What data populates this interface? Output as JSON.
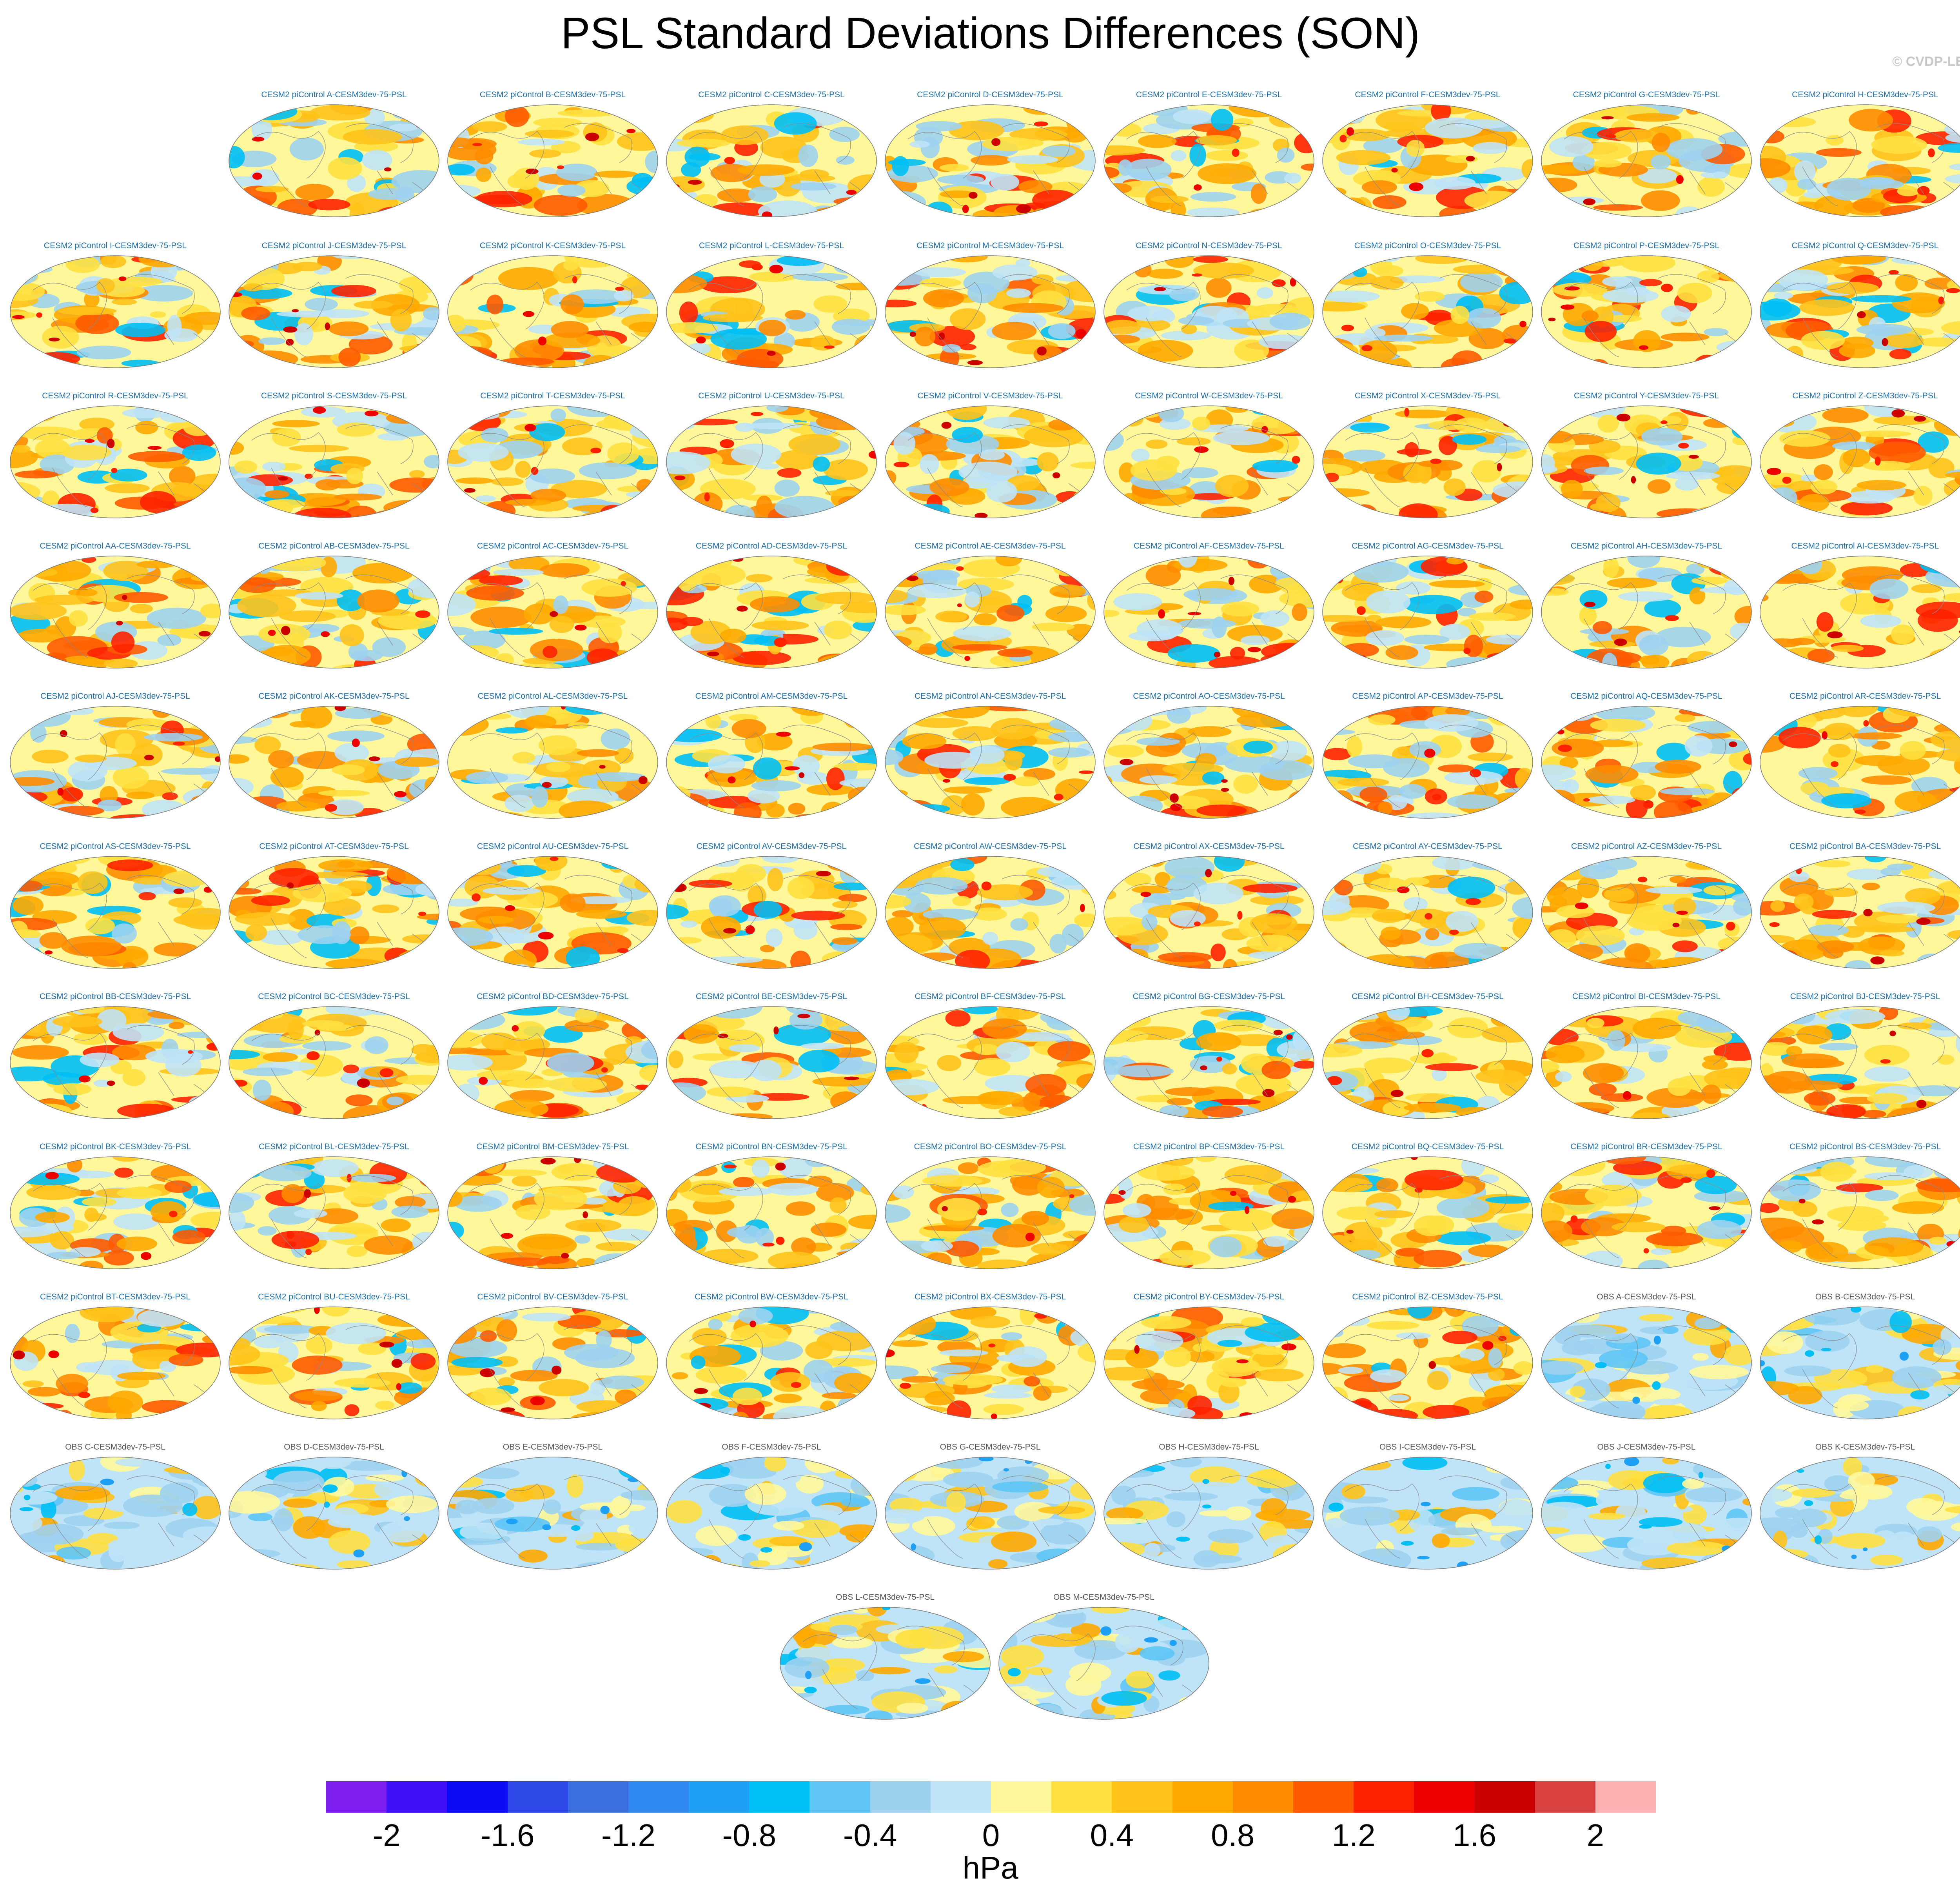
{
  "title": "PSL Standard Deviations Differences (SON)",
  "copyright": "© CVDP-LE",
  "panels": [
    "CESM2 piControl A-CESM3dev-75-PSL",
    "CESM2 piControl B-CESM3dev-75-PSL",
    "CESM2 piControl C-CESM3dev-75-PSL",
    "CESM2 piControl D-CESM3dev-75-PSL",
    "CESM2 piControl E-CESM3dev-75-PSL",
    "CESM2 piControl F-CESM3dev-75-PSL",
    "CESM2 piControl G-CESM3dev-75-PSL",
    "CESM2 piControl H-CESM3dev-75-PSL",
    "CESM2 piControl I-CESM3dev-75-PSL",
    "CESM2 piControl J-CESM3dev-75-PSL",
    "CESM2 piControl K-CESM3dev-75-PSL",
    "CESM2 piControl L-CESM3dev-75-PSL",
    "CESM2 piControl M-CESM3dev-75-PSL",
    "CESM2 piControl N-CESM3dev-75-PSL",
    "CESM2 piControl O-CESM3dev-75-PSL",
    "CESM2 piControl P-CESM3dev-75-PSL",
    "CESM2 piControl Q-CESM3dev-75-PSL",
    "CESM2 piControl R-CESM3dev-75-PSL",
    "CESM2 piControl S-CESM3dev-75-PSL",
    "CESM2 piControl T-CESM3dev-75-PSL",
    "CESM2 piControl U-CESM3dev-75-PSL",
    "CESM2 piControl V-CESM3dev-75-PSL",
    "CESM2 piControl W-CESM3dev-75-PSL",
    "CESM2 piControl X-CESM3dev-75-PSL",
    "CESM2 piControl Y-CESM3dev-75-PSL",
    "CESM2 piControl Z-CESM3dev-75-PSL",
    "CESM2 piControl AA-CESM3dev-75-PSL",
    "CESM2 piControl AB-CESM3dev-75-PSL",
    "CESM2 piControl AC-CESM3dev-75-PSL",
    "CESM2 piControl AD-CESM3dev-75-PSL",
    "CESM2 piControl AE-CESM3dev-75-PSL",
    "CESM2 piControl AF-CESM3dev-75-PSL",
    "CESM2 piControl AG-CESM3dev-75-PSL",
    "CESM2 piControl AH-CESM3dev-75-PSL",
    "CESM2 piControl AI-CESM3dev-75-PSL",
    "CESM2 piControl AJ-CESM3dev-75-PSL",
    "CESM2 piControl AK-CESM3dev-75-PSL",
    "CESM2 piControl AL-CESM3dev-75-PSL",
    "CESM2 piControl AM-CESM3dev-75-PSL",
    "CESM2 piControl AN-CESM3dev-75-PSL",
    "CESM2 piControl AO-CESM3dev-75-PSL",
    "CESM2 piControl AP-CESM3dev-75-PSL",
    "CESM2 piControl AQ-CESM3dev-75-PSL",
    "CESM2 piControl AR-CESM3dev-75-PSL",
    "CESM2 piControl AS-CESM3dev-75-PSL",
    "CESM2 piControl AT-CESM3dev-75-PSL",
    "CESM2 piControl AU-CESM3dev-75-PSL",
    "CESM2 piControl AV-CESM3dev-75-PSL",
    "CESM2 piControl AW-CESM3dev-75-PSL",
    "CESM2 piControl AX-CESM3dev-75-PSL",
    "CESM2 piControl AY-CESM3dev-75-PSL",
    "CESM2 piControl AZ-CESM3dev-75-PSL",
    "CESM2 piControl BA-CESM3dev-75-PSL",
    "CESM2 piControl BB-CESM3dev-75-PSL",
    "CESM2 piControl BC-CESM3dev-75-PSL",
    "CESM2 piControl BD-CESM3dev-75-PSL",
    "CESM2 piControl BE-CESM3dev-75-PSL",
    "CESM2 piControl BF-CESM3dev-75-PSL",
    "CESM2 piControl BG-CESM3dev-75-PSL",
    "CESM2 piControl BH-CESM3dev-75-PSL",
    "CESM2 piControl BI-CESM3dev-75-PSL",
    "CESM2 piControl BJ-CESM3dev-75-PSL",
    "CESM2 piControl BK-CESM3dev-75-PSL",
    "CESM2 piControl BL-CESM3dev-75-PSL",
    "CESM2 piControl BM-CESM3dev-75-PSL",
    "CESM2 piControl BN-CESM3dev-75-PSL",
    "CESM2 piControl BO-CESM3dev-75-PSL",
    "CESM2 piControl BP-CESM3dev-75-PSL",
    "CESM2 piControl BQ-CESM3dev-75-PSL",
    "CESM2 piControl BR-CESM3dev-75-PSL",
    "CESM2 piControl BS-CESM3dev-75-PSL",
    "CESM2 piControl BT-CESM3dev-75-PSL",
    "CESM2 piControl BU-CESM3dev-75-PSL",
    "CESM2 piControl BV-CESM3dev-75-PSL",
    "CESM2 piControl BW-CESM3dev-75-PSL",
    "CESM2 piControl BX-CESM3dev-75-PSL",
    "CESM2 piControl BY-CESM3dev-75-PSL",
    "CESM2 piControl BZ-CESM3dev-75-PSL",
    "OBS A-CESM3dev-75-PSL",
    "OBS B-CESM3dev-75-PSL",
    "OBS C-CESM3dev-75-PSL",
    "OBS D-CESM3dev-75-PSL",
    "OBS E-CESM3dev-75-PSL",
    "OBS F-CESM3dev-75-PSL",
    "OBS G-CESM3dev-75-PSL",
    "OBS H-CESM3dev-75-PSL",
    "OBS I-CESM3dev-75-PSL",
    "OBS J-CESM3dev-75-PSL",
    "OBS K-CESM3dev-75-PSL",
    "OBS L-CESM3dev-75-PSL",
    "OBS M-CESM3dev-75-PSL"
  ],
  "colorbar": {
    "colors": [
      "#7f1ff0",
      "#3f0ff5",
      "#0a0af5",
      "#2f4ae8",
      "#3b6fe0",
      "#2f87f0",
      "#1ea0f5",
      "#00bff5",
      "#5ec5f5",
      "#9dd2ef",
      "#bfe3f7",
      "#fff79a",
      "#ffe040",
      "#ffc21a",
      "#ffa900",
      "#ff8c00",
      "#ff5a00",
      "#ff2200",
      "#ee0000",
      "#cc0000",
      "#d94040",
      "#ffb0b0"
    ],
    "levels": [
      -2.2,
      -2.0,
      -1.8,
      -1.6,
      -1.4,
      -1.2,
      -1.0,
      -0.8,
      -0.6,
      -0.4,
      -0.2,
      0,
      0.2,
      0.4,
      0.6,
      0.8,
      1.0,
      1.2,
      1.4,
      1.6,
      1.8,
      2.0,
      2.2
    ],
    "tick_labels": [
      "-2",
      "-1.6",
      "-1.2",
      "-0.8",
      "-0.4",
      "0",
      "0.4",
      "0.8",
      "1.2",
      "1.6",
      "2"
    ],
    "tick_values": [
      -2,
      -1.6,
      -1.2,
      -0.8,
      -0.4,
      0,
      0.4,
      0.8,
      1.2,
      1.6,
      2
    ],
    "units": "hPa"
  }
}
